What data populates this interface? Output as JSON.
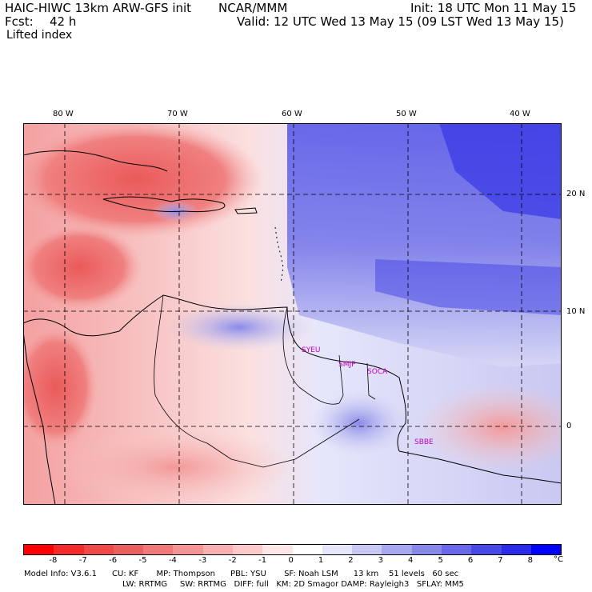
{
  "header": {
    "model_title": "HAIC-HIWC 13km ARW-GFS init",
    "org": "NCAR/MMM",
    "init": "Init: 18 UTC Mon 11 May 15",
    "fcst_label": "Fcst:",
    "fcst_value": "42 h",
    "valid": "Valid: 12 UTC Wed 13 May 15 (09 LST Wed 13 May 15)",
    "field": "Lifted index"
  },
  "map": {
    "lon_labels": [
      "80 W",
      "70 W",
      "60 W",
      "50 W",
      "40 W"
    ],
    "lat_labels": [
      "20 N",
      "10 N",
      "0"
    ],
    "stations": [
      "SYEU",
      "SMJP",
      "SOCA",
      "SBBE"
    ]
  },
  "colorbar": {
    "ticks": [
      "-8",
      "-7",
      "-6",
      "-5",
      "-4",
      "-3",
      "-2",
      "-1",
      "0",
      "1",
      "2",
      "3",
      "4",
      "5",
      "6",
      "7",
      "8"
    ],
    "unit": "°C",
    "colors": [
      "#ff0000",
      "#f52a2a",
      "#ee4848",
      "#ea6060",
      "#f07878",
      "#f49494",
      "#f8b0b0",
      "#fccaca",
      "#fde6e6",
      "#ffffff",
      "#e6e6fb",
      "#c8c8f2",
      "#a8a8ee",
      "#8888ea",
      "#6868e8",
      "#4848e6",
      "#2a2ae8",
      "#0000ff"
    ]
  },
  "footer": {
    "line1": "Model Info: V3.6.1      CU: KF       MP: Thompson      PBL: YSU       SF: Noah LSM      13 km    51 levels   60 sec",
    "line2": "LW: RRTMG     SW: RRTMG   DIFF: full   KM: 2D Smagor DAMP: Rayleigh3   SFLAY: MM5"
  }
}
